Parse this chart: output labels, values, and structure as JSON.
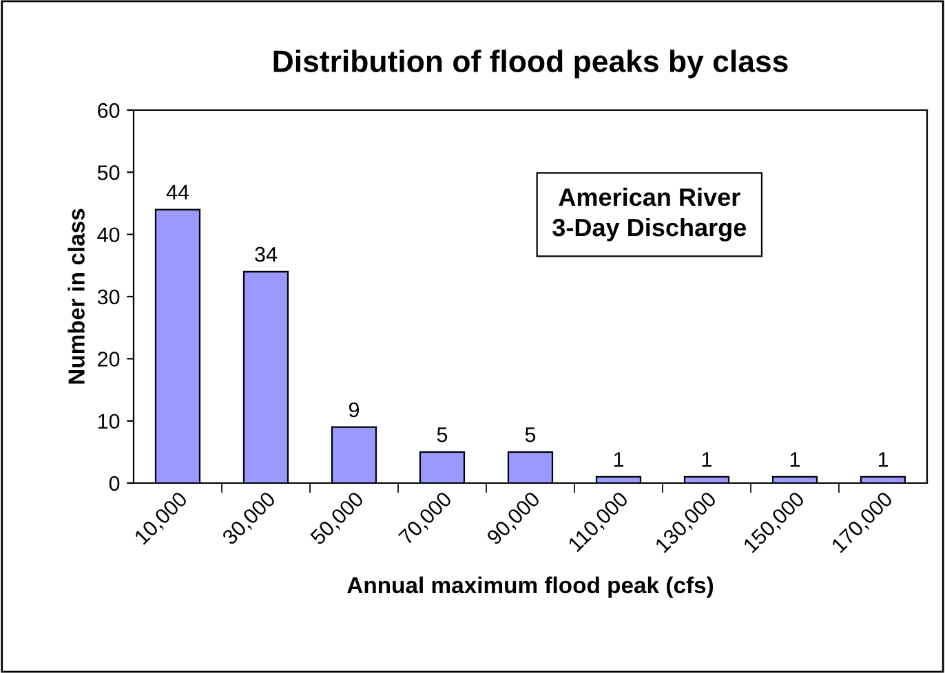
{
  "chart_data": {
    "type": "bar",
    "title": "Distribution of flood peaks by class",
    "xlabel": "Annual maximum flood peak (cfs)",
    "ylabel": "Number in class",
    "categories": [
      "10,000",
      "30,000",
      "50,000",
      "70,000",
      "90,000",
      "110,000",
      "130,000",
      "150,000",
      "170,000"
    ],
    "values": [
      44,
      34,
      9,
      5,
      5,
      1,
      1,
      1,
      1
    ],
    "color": "#9999ff",
    "ylim": [
      0,
      60
    ],
    "yticks": [
      0,
      10,
      20,
      30,
      40,
      50,
      60
    ],
    "grid": false,
    "data_labels": true,
    "annotations": [
      "American River\n3-Day Discharge"
    ]
  }
}
